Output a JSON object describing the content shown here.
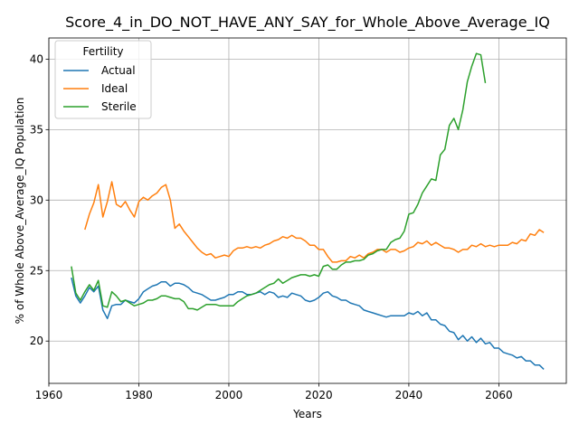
{
  "chart_data": {
    "type": "line",
    "title": "Score_4_in_DO_NOT_HAVE_ANY_SAY_for_Whole_Above_Average_IQ",
    "xlabel": "Years",
    "ylabel": "% of Whole Above_Average_IQ Population",
    "xlim": [
      1960,
      2075
    ],
    "ylim": [
      17,
      41.5
    ],
    "xticks": [
      1960,
      1980,
      2000,
      2020,
      2040,
      2060
    ],
    "yticks": [
      20,
      25,
      30,
      35,
      40
    ],
    "grid": true,
    "legend": {
      "title": "Fertility",
      "placement": "top-left"
    },
    "series": [
      {
        "name": "Actual",
        "color": "#1f77b4",
        "points": [
          [
            1965,
            24.5
          ],
          [
            1966,
            23.2
          ],
          [
            1967,
            22.7
          ],
          [
            1968,
            23.2
          ],
          [
            1969,
            23.8
          ],
          [
            1970,
            23.5
          ],
          [
            1971,
            23.9
          ],
          [
            1972,
            22.2
          ],
          [
            1973,
            21.6
          ],
          [
            1974,
            22.5
          ],
          [
            1975,
            22.6
          ],
          [
            1976,
            22.6
          ],
          [
            1977,
            22.9
          ],
          [
            1978,
            22.8
          ],
          [
            1979,
            22.7
          ],
          [
            1980,
            23.0
          ],
          [
            1981,
            23.5
          ],
          [
            1982,
            23.7
          ],
          [
            1983,
            23.9
          ],
          [
            1984,
            24.0
          ],
          [
            1985,
            24.2
          ],
          [
            1986,
            24.2
          ],
          [
            1987,
            23.9
          ],
          [
            1988,
            24.1
          ],
          [
            1989,
            24.1
          ],
          [
            1990,
            24.0
          ],
          [
            1991,
            23.8
          ],
          [
            1992,
            23.5
          ],
          [
            1993,
            23.4
          ],
          [
            1994,
            23.3
          ],
          [
            1995,
            23.1
          ],
          [
            1996,
            22.9
          ],
          [
            1997,
            22.9
          ],
          [
            1998,
            23.0
          ],
          [
            1999,
            23.1
          ],
          [
            2000,
            23.3
          ],
          [
            2001,
            23.3
          ],
          [
            2002,
            23.5
          ],
          [
            2003,
            23.5
          ],
          [
            2004,
            23.3
          ],
          [
            2005,
            23.3
          ],
          [
            2006,
            23.4
          ],
          [
            2007,
            23.5
          ],
          [
            2008,
            23.3
          ],
          [
            2009,
            23.5
          ],
          [
            2010,
            23.4
          ],
          [
            2011,
            23.1
          ],
          [
            2012,
            23.2
          ],
          [
            2013,
            23.1
          ],
          [
            2014,
            23.4
          ],
          [
            2015,
            23.3
          ],
          [
            2016,
            23.2
          ],
          [
            2017,
            22.9
          ],
          [
            2018,
            22.8
          ],
          [
            2019,
            22.9
          ],
          [
            2020,
            23.1
          ],
          [
            2021,
            23.4
          ],
          [
            2022,
            23.5
          ],
          [
            2023,
            23.2
          ],
          [
            2024,
            23.1
          ],
          [
            2025,
            22.9
          ],
          [
            2026,
            22.9
          ],
          [
            2027,
            22.7
          ],
          [
            2028,
            22.6
          ],
          [
            2029,
            22.5
          ],
          [
            2030,
            22.2
          ],
          [
            2031,
            22.1
          ],
          [
            2032,
            22.0
          ],
          [
            2033,
            21.9
          ],
          [
            2034,
            21.8
          ],
          [
            2035,
            21.7
          ],
          [
            2036,
            21.8
          ],
          [
            2037,
            21.8
          ],
          [
            2038,
            21.8
          ],
          [
            2039,
            21.8
          ],
          [
            2040,
            22.0
          ],
          [
            2041,
            21.9
          ],
          [
            2042,
            22.1
          ],
          [
            2043,
            21.8
          ],
          [
            2044,
            22.0
          ],
          [
            2045,
            21.5
          ],
          [
            2046,
            21.5
          ],
          [
            2047,
            21.2
          ],
          [
            2048,
            21.1
          ],
          [
            2049,
            20.7
          ],
          [
            2050,
            20.6
          ],
          [
            2051,
            20.1
          ],
          [
            2052,
            20.4
          ],
          [
            2053,
            20.0
          ],
          [
            2054,
            20.3
          ],
          [
            2055,
            19.9
          ],
          [
            2056,
            20.2
          ],
          [
            2057,
            19.8
          ],
          [
            2058,
            19.9
          ],
          [
            2059,
            19.5
          ],
          [
            2060,
            19.5
          ],
          [
            2061,
            19.2
          ],
          [
            2062,
            19.1
          ],
          [
            2063,
            19.0
          ],
          [
            2064,
            18.8
          ],
          [
            2065,
            18.9
          ],
          [
            2066,
            18.6
          ],
          [
            2067,
            18.6
          ],
          [
            2068,
            18.3
          ],
          [
            2069,
            18.3
          ],
          [
            2070,
            18.0
          ]
        ]
      },
      {
        "name": "Ideal",
        "color": "#ff7f0e",
        "points": [
          [
            1968,
            27.9
          ],
          [
            1969,
            29.0
          ],
          [
            1970,
            29.8
          ],
          [
            1971,
            31.1
          ],
          [
            1972,
            28.8
          ],
          [
            1973,
            29.9
          ],
          [
            1974,
            31.3
          ],
          [
            1975,
            29.7
          ],
          [
            1976,
            29.5
          ],
          [
            1977,
            29.9
          ],
          [
            1978,
            29.3
          ],
          [
            1979,
            28.8
          ],
          [
            1980,
            29.9
          ],
          [
            1981,
            30.2
          ],
          [
            1982,
            30.0
          ],
          [
            1983,
            30.3
          ],
          [
            1984,
            30.5
          ],
          [
            1985,
            30.9
          ],
          [
            1986,
            31.1
          ],
          [
            1987,
            30.0
          ],
          [
            1988,
            28.0
          ],
          [
            1989,
            28.3
          ],
          [
            1990,
            27.8
          ],
          [
            1991,
            27.4
          ],
          [
            1992,
            27.0
          ],
          [
            1993,
            26.6
          ],
          [
            1994,
            26.3
          ],
          [
            1995,
            26.1
          ],
          [
            1996,
            26.2
          ],
          [
            1997,
            25.9
          ],
          [
            1998,
            26.0
          ],
          [
            1999,
            26.1
          ],
          [
            2000,
            26.0
          ],
          [
            2001,
            26.4
          ],
          [
            2002,
            26.6
          ],
          [
            2003,
            26.6
          ],
          [
            2004,
            26.7
          ],
          [
            2005,
            26.6
          ],
          [
            2006,
            26.7
          ],
          [
            2007,
            26.6
          ],
          [
            2008,
            26.8
          ],
          [
            2009,
            26.9
          ],
          [
            2010,
            27.1
          ],
          [
            2011,
            27.2
          ],
          [
            2012,
            27.4
          ],
          [
            2013,
            27.3
          ],
          [
            2014,
            27.5
          ],
          [
            2015,
            27.3
          ],
          [
            2016,
            27.3
          ],
          [
            2017,
            27.1
          ],
          [
            2018,
            26.8
          ],
          [
            2019,
            26.8
          ],
          [
            2020,
            26.5
          ],
          [
            2021,
            26.5
          ],
          [
            2022,
            26.0
          ],
          [
            2023,
            25.6
          ],
          [
            2024,
            25.6
          ],
          [
            2025,
            25.7
          ],
          [
            2026,
            25.7
          ],
          [
            2027,
            26.0
          ],
          [
            2028,
            25.9
          ],
          [
            2029,
            26.1
          ],
          [
            2030,
            25.9
          ],
          [
            2031,
            26.2
          ],
          [
            2032,
            26.3
          ],
          [
            2033,
            26.5
          ],
          [
            2034,
            26.5
          ],
          [
            2035,
            26.3
          ],
          [
            2036,
            26.5
          ],
          [
            2037,
            26.5
          ],
          [
            2038,
            26.3
          ],
          [
            2039,
            26.4
          ],
          [
            2040,
            26.6
          ],
          [
            2041,
            26.7
          ],
          [
            2042,
            27.0
          ],
          [
            2043,
            26.9
          ],
          [
            2044,
            27.1
          ],
          [
            2045,
            26.8
          ],
          [
            2046,
            27.0
          ],
          [
            2047,
            26.8
          ],
          [
            2048,
            26.6
          ],
          [
            2049,
            26.6
          ],
          [
            2050,
            26.5
          ],
          [
            2051,
            26.3
          ],
          [
            2052,
            26.5
          ],
          [
            2053,
            26.5
          ],
          [
            2054,
            26.8
          ],
          [
            2055,
            26.7
          ],
          [
            2056,
            26.9
          ],
          [
            2057,
            26.7
          ],
          [
            2058,
            26.8
          ],
          [
            2059,
            26.7
          ],
          [
            2060,
            26.8
          ],
          [
            2061,
            26.8
          ],
          [
            2062,
            26.8
          ],
          [
            2063,
            27.0
          ],
          [
            2064,
            26.9
          ],
          [
            2065,
            27.2
          ],
          [
            2066,
            27.1
          ],
          [
            2067,
            27.6
          ],
          [
            2068,
            27.5
          ],
          [
            2069,
            27.9
          ],
          [
            2070,
            27.7
          ]
        ]
      },
      {
        "name": "Sterile",
        "color": "#2ca02c",
        "points": [
          [
            1965,
            25.3
          ],
          [
            1966,
            23.4
          ],
          [
            1967,
            22.9
          ],
          [
            1968,
            23.5
          ],
          [
            1969,
            24.0
          ],
          [
            1970,
            23.6
          ],
          [
            1971,
            24.3
          ],
          [
            1972,
            22.5
          ],
          [
            1973,
            22.4
          ],
          [
            1974,
            23.5
          ],
          [
            1975,
            23.2
          ],
          [
            1976,
            22.8
          ],
          [
            1977,
            22.9
          ],
          [
            1978,
            22.7
          ],
          [
            1979,
            22.5
          ],
          [
            1980,
            22.6
          ],
          [
            1981,
            22.7
          ],
          [
            1982,
            22.9
          ],
          [
            1983,
            22.9
          ],
          [
            1984,
            23.0
          ],
          [
            1985,
            23.2
          ],
          [
            1986,
            23.2
          ],
          [
            1987,
            23.1
          ],
          [
            1988,
            23.0
          ],
          [
            1989,
            23.0
          ],
          [
            1990,
            22.8
          ],
          [
            1991,
            22.3
          ],
          [
            1992,
            22.3
          ],
          [
            1993,
            22.2
          ],
          [
            1994,
            22.4
          ],
          [
            1995,
            22.6
          ],
          [
            1996,
            22.6
          ],
          [
            1997,
            22.6
          ],
          [
            1998,
            22.5
          ],
          [
            1999,
            22.5
          ],
          [
            2000,
            22.5
          ],
          [
            2001,
            22.5
          ],
          [
            2002,
            22.8
          ],
          [
            2003,
            23.0
          ],
          [
            2004,
            23.2
          ],
          [
            2005,
            23.3
          ],
          [
            2006,
            23.4
          ],
          [
            2007,
            23.6
          ],
          [
            2008,
            23.8
          ],
          [
            2009,
            24.0
          ],
          [
            2010,
            24.1
          ],
          [
            2011,
            24.4
          ],
          [
            2012,
            24.1
          ],
          [
            2013,
            24.3
          ],
          [
            2014,
            24.5
          ],
          [
            2015,
            24.6
          ],
          [
            2016,
            24.7
          ],
          [
            2017,
            24.7
          ],
          [
            2018,
            24.6
          ],
          [
            2019,
            24.7
          ],
          [
            2020,
            24.6
          ],
          [
            2021,
            25.3
          ],
          [
            2022,
            25.4
          ],
          [
            2023,
            25.1
          ],
          [
            2024,
            25.1
          ],
          [
            2025,
            25.4
          ],
          [
            2026,
            25.6
          ],
          [
            2027,
            25.6
          ],
          [
            2028,
            25.7
          ],
          [
            2029,
            25.7
          ],
          [
            2030,
            25.8
          ],
          [
            2031,
            26.1
          ],
          [
            2032,
            26.2
          ],
          [
            2033,
            26.4
          ],
          [
            2034,
            26.5
          ],
          [
            2035,
            26.5
          ],
          [
            2036,
            27.0
          ],
          [
            2037,
            27.2
          ],
          [
            2038,
            27.3
          ],
          [
            2039,
            27.8
          ],
          [
            2040,
            29.0
          ],
          [
            2041,
            29.1
          ],
          [
            2042,
            29.7
          ],
          [
            2043,
            30.5
          ],
          [
            2044,
            31.0
          ],
          [
            2045,
            31.5
          ],
          [
            2046,
            31.4
          ],
          [
            2047,
            33.2
          ],
          [
            2048,
            33.6
          ],
          [
            2049,
            35.3
          ],
          [
            2050,
            35.8
          ],
          [
            2051,
            35.0
          ],
          [
            2052,
            36.4
          ],
          [
            2053,
            38.4
          ],
          [
            2054,
            39.5
          ],
          [
            2055,
            40.4
          ],
          [
            2056,
            40.3
          ],
          [
            2057,
            38.3
          ]
        ]
      }
    ]
  }
}
